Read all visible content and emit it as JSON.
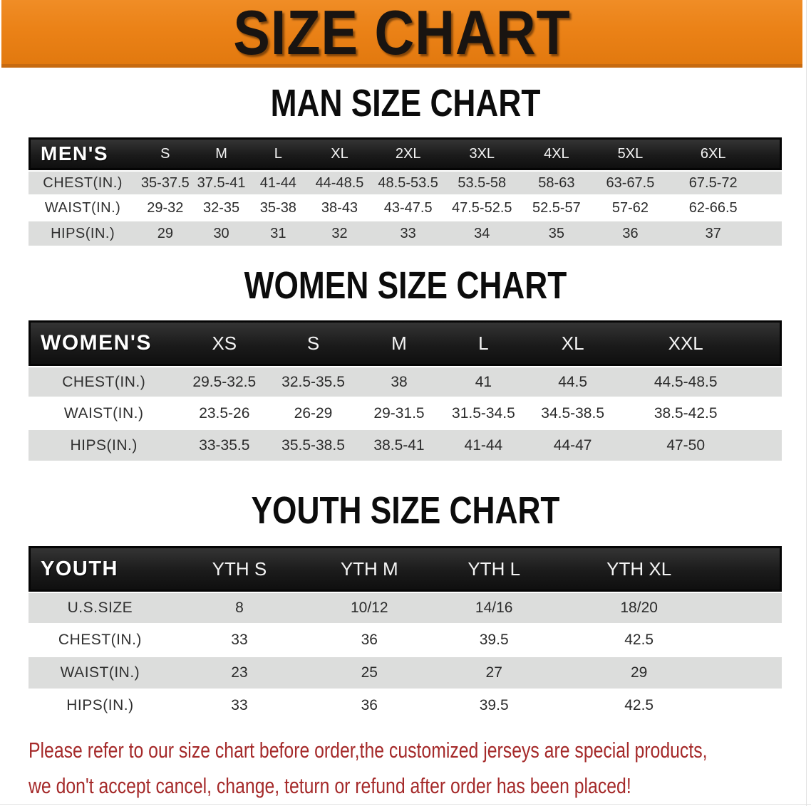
{
  "banner": {
    "title": "SIZE CHART"
  },
  "colors": {
    "banner_bg": "#eb8217",
    "banner_edge": "#c76a10",
    "header_band": "#161616",
    "row_stripe": "#dcdddc",
    "disclaimer_text": "#a52a2a"
  },
  "sections": [
    {
      "heading": "MAN SIZE CHART",
      "table": {
        "header_label": "MEN'S",
        "columns": [
          "S",
          "M",
          "L",
          "XL",
          "2XL",
          "3XL",
          "4XL",
          "5XL",
          "6XL"
        ],
        "rows": [
          {
            "label": "CHEST(IN.)",
            "values": [
              "35-37.5",
              "37.5-41",
              "41-44",
              "44-48.5",
              "48.5-53.5",
              "53.5-58",
              "58-63",
              "63-67.5",
              "67.5-72"
            ]
          },
          {
            "label": "WAIST(IN.)",
            "values": [
              "29-32",
              "32-35",
              "35-38",
              "38-43",
              "43-47.5",
              "47.5-52.5",
              "52.5-57",
              "57-62",
              "62-66.5"
            ]
          },
          {
            "label": "HIPS(IN.)",
            "values": [
              "29",
              "30",
              "31",
              "32",
              "33",
              "34",
              "35",
              "36",
              "37"
            ]
          }
        ]
      }
    },
    {
      "heading": "WOMEN SIZE CHART",
      "table": {
        "header_label": "WOMEN'S",
        "columns": [
          "XS",
          "S",
          "M",
          "L",
          "XL",
          "XXL"
        ],
        "rows": [
          {
            "label": "CHEST(IN.)",
            "values": [
              "29.5-32.5",
              "32.5-35.5",
              "38",
              "41",
              "44.5",
              "44.5-48.5"
            ]
          },
          {
            "label": "WAIST(IN.)",
            "values": [
              "23.5-26",
              "26-29",
              "29-31.5",
              "31.5-34.5",
              "34.5-38.5",
              "38.5-42.5"
            ]
          },
          {
            "label": "HIPS(IN.)",
            "values": [
              "33-35.5",
              "35.5-38.5",
              "38.5-41",
              "41-44",
              "44-47",
              "47-50"
            ]
          }
        ]
      }
    },
    {
      "heading": "YOUTH SIZE CHART",
      "table": {
        "header_label": "YOUTH",
        "columns": [
          "YTH S",
          "YTH M",
          "YTH L",
          "YTH XL"
        ],
        "rows": [
          {
            "label": "U.S.SIZE",
            "values": [
              "8",
              "10/12",
              "14/16",
              "18/20"
            ]
          },
          {
            "label": "CHEST(IN.)",
            "values": [
              "33",
              "36",
              "39.5",
              "42.5"
            ]
          },
          {
            "label": "WAIST(IN.)",
            "values": [
              "23",
              "25",
              "27",
              "29"
            ]
          },
          {
            "label": "HIPS(IN.)",
            "values": [
              "33",
              "36",
              "39.5",
              "42.5"
            ]
          }
        ]
      }
    }
  ],
  "disclaimer": {
    "line1": "Please refer to our size chart before order,the customized jerseys are special products,",
    "line2": "we don't accept cancel, change, teturn or refund after order has been placed!"
  }
}
